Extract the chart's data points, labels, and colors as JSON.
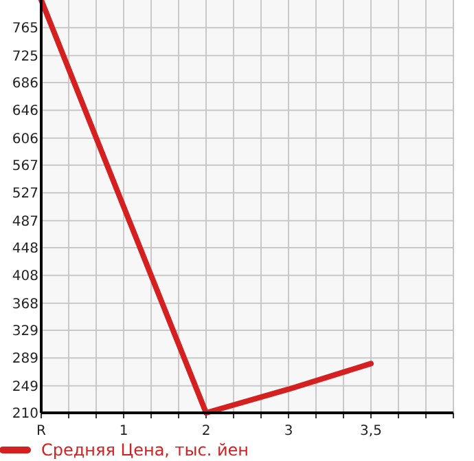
{
  "chart_data": {
    "type": "line",
    "categories": [
      "R",
      "1",
      "2",
      "3",
      "3,5",
      null
    ],
    "series": [
      {
        "name": "Средняя Цена, тыс. йен",
        "color": "#d42020",
        "values": [
          805,
          507,
          210,
          244,
          281,
          null
        ]
      }
    ],
    "ylim": [
      210,
      805
    ],
    "yticks": [
      210,
      249,
      289,
      329,
      368,
      408,
      448,
      487,
      527,
      567,
      606,
      646,
      686,
      725,
      765
    ],
    "grid": true,
    "legend": "bottom",
    "marker": "none",
    "line_style": "solid"
  }
}
